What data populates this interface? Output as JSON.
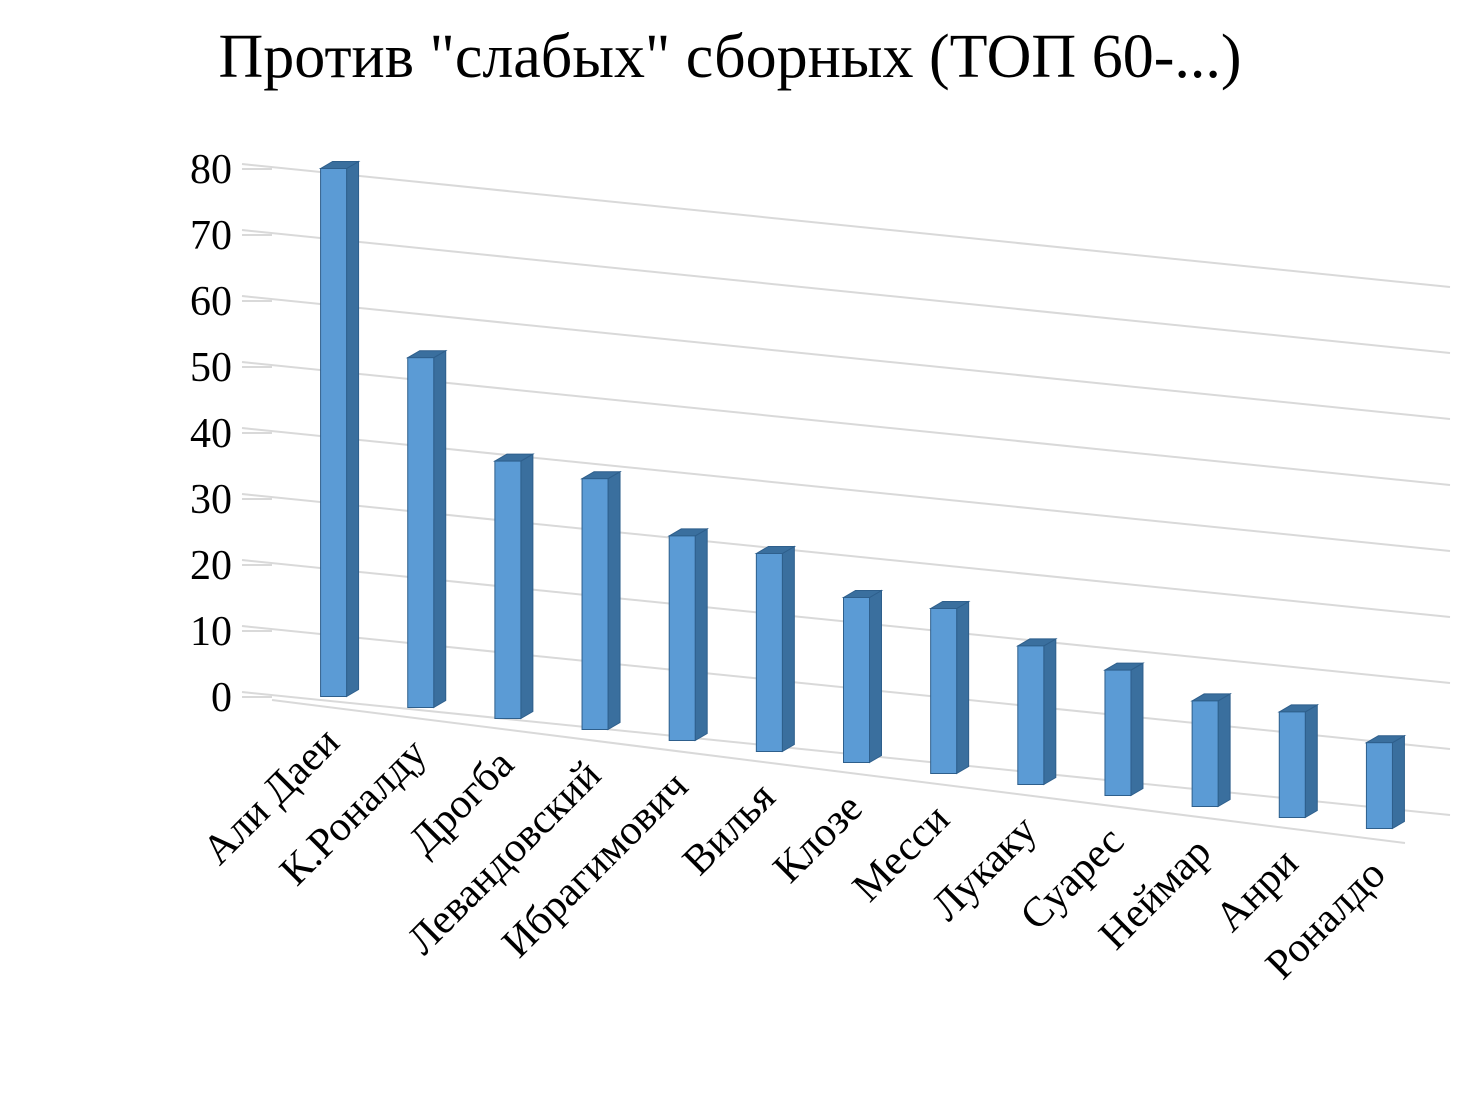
{
  "chart_data": {
    "type": "bar",
    "title": "Против \"слабых\" сборных (ТОП 60-...)",
    "categories": [
      "Али Даеи",
      "К.Роналду",
      "Дрогба",
      "Левандовский",
      "Ибрагимович",
      "Вилья",
      "Клозе",
      "Месси",
      "Лукаку",
      "Суарес",
      "Неймар",
      "Анри",
      "Роналдо"
    ],
    "series": [
      {
        "values": [
          80,
          53,
          39,
          38,
          31,
          30,
          25,
          25,
          21,
          19,
          16,
          16,
          13
        ]
      }
    ],
    "y_ticks": [
      "0",
      "10",
      "20",
      "30",
      "40",
      "50",
      "60",
      "70",
      "80"
    ],
    "ylim": [
      0,
      80
    ],
    "xlabel": "",
    "ylabel": "",
    "grid": true,
    "legend": "none",
    "style": "3d-column",
    "colors": {
      "bar_front": "#5B9BD5",
      "bar_side": "#3A6F9E",
      "bar_top": "#7FB3E3",
      "bar_edge": "#2E5F8C",
      "grid": "#D9D9D9"
    }
  }
}
